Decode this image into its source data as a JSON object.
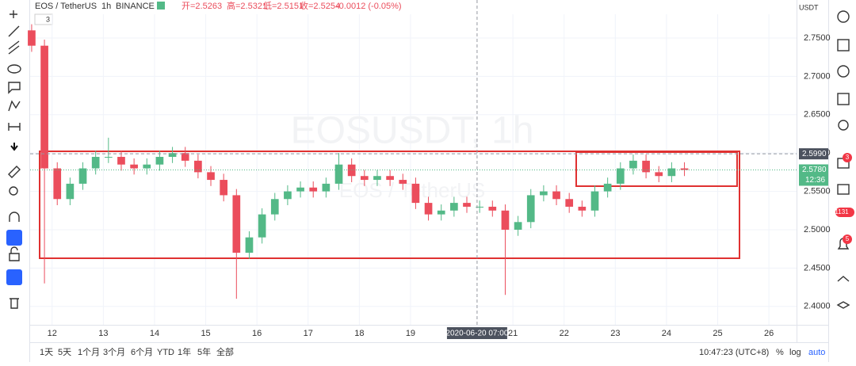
{
  "header": {
    "symbol": "EOS / TetherUS",
    "interval": "1h",
    "exchange": "BINANCE",
    "open": "开=2.5263",
    "high": "高=2.5321",
    "low": "低=2.5151",
    "close": "收=2.5254",
    "change": "-0.0012 (-0.05%)",
    "indicators": "3"
  },
  "watermark": {
    "main": "EOSUSDT, 1h",
    "sub": "EOS / TetherUS"
  },
  "chart_data": {
    "type": "candlestick",
    "currency": "USDT",
    "x": [
      11.6,
      11.85,
      12.1,
      12.35,
      12.6,
      12.85,
      13.1,
      13.35,
      13.6,
      13.85,
      14.1,
      14.35,
      14.6,
      14.85,
      15.1,
      15.35,
      15.6,
      15.85,
      16.1,
      16.35,
      16.6,
      16.85,
      17.1,
      17.35,
      17.6,
      17.85,
      18.1,
      18.35,
      18.6,
      18.85,
      19.1,
      19.35,
      19.6,
      19.85,
      20.1,
      20.35,
      20.6,
      20.85,
      21.1,
      21.35,
      21.6,
      21.85,
      22.1,
      22.35,
      22.6,
      22.85,
      23.1,
      23.35,
      23.6,
      23.85,
      24.1,
      24.35
    ],
    "open": [
      2.76,
      2.74,
      2.58,
      2.54,
      2.56,
      2.58,
      2.595,
      2.595,
      2.585,
      2.58,
      2.585,
      2.595,
      2.6,
      2.59,
      2.575,
      2.565,
      2.545,
      2.47,
      2.49,
      2.52,
      2.54,
      2.55,
      2.555,
      2.55,
      2.56,
      2.585,
      2.57,
      2.565,
      2.57,
      2.565,
      2.56,
      2.535,
      2.52,
      2.525,
      2.535,
      2.53,
      2.53,
      2.525,
      2.5,
      2.51,
      2.545,
      2.55,
      2.54,
      2.53,
      2.525,
      2.55,
      2.56,
      2.58,
      2.59,
      2.575,
      2.57,
      2.58
    ],
    "high": [
      2.768,
      2.748,
      2.588,
      2.568,
      2.588,
      2.603,
      2.62,
      2.603,
      2.593,
      2.593,
      2.603,
      2.608,
      2.608,
      2.598,
      2.583,
      2.573,
      2.553,
      2.498,
      2.528,
      2.548,
      2.558,
      2.563,
      2.563,
      2.568,
      2.6,
      2.593,
      2.578,
      2.578,
      2.578,
      2.573,
      2.568,
      2.543,
      2.533,
      2.543,
      2.543,
      2.538,
      2.538,
      2.533,
      2.518,
      2.553,
      2.558,
      2.558,
      2.548,
      2.538,
      2.558,
      2.568,
      2.588,
      2.598,
      2.598,
      2.583,
      2.588,
      2.588
    ],
    "low": [
      2.732,
      2.43,
      2.532,
      2.532,
      2.552,
      2.572,
      2.587,
      2.577,
      2.572,
      2.572,
      2.577,
      2.587,
      2.582,
      2.567,
      2.557,
      2.537,
      2.41,
      2.462,
      2.482,
      2.512,
      2.532,
      2.542,
      2.542,
      2.542,
      2.552,
      2.562,
      2.557,
      2.557,
      2.557,
      2.552,
      2.527,
      2.512,
      2.512,
      2.517,
      2.522,
      2.522,
      2.517,
      2.415,
      2.492,
      2.502,
      2.537,
      2.532,
      2.522,
      2.517,
      2.517,
      2.542,
      2.552,
      2.572,
      2.567,
      2.562,
      2.562,
      2.57
    ],
    "close": [
      2.74,
      2.58,
      2.54,
      2.56,
      2.58,
      2.595,
      2.595,
      2.585,
      2.58,
      2.585,
      2.595,
      2.6,
      2.59,
      2.575,
      2.565,
      2.545,
      2.47,
      2.49,
      2.52,
      2.54,
      2.55,
      2.555,
      2.55,
      2.56,
      2.585,
      2.57,
      2.565,
      2.57,
      2.565,
      2.56,
      2.535,
      2.52,
      2.525,
      2.535,
      2.53,
      2.53,
      2.525,
      2.5,
      2.51,
      2.545,
      2.55,
      2.54,
      2.53,
      2.525,
      2.55,
      2.56,
      2.58,
      2.59,
      2.575,
      2.57,
      2.58,
      2.578
    ],
    "up_color": "#53b987",
    "down_color": "#eb4d5c",
    "xlim": [
      11.57,
      26.54
    ],
    "xticks": [
      12,
      13,
      14,
      15,
      16,
      17,
      18,
      19,
      21,
      22,
      23,
      24,
      25,
      26
    ],
    "ylim": [
      2.376,
      2.781
    ],
    "yticks": [
      {
        "value": 2.4,
        "label": "2.4000"
      },
      {
        "value": 2.45,
        "label": "2.4500"
      },
      {
        "value": 2.5,
        "label": "2.5000"
      },
      {
        "value": 2.55,
        "label": "2.5500"
      },
      {
        "value": 2.6,
        "label": "2.6000"
      },
      {
        "value": 2.65,
        "label": "2.6500"
      },
      {
        "value": 2.7,
        "label": "2.7000"
      },
      {
        "value": 2.75,
        "label": "2.7500"
      }
    ],
    "crosshair": {
      "x": 20.3,
      "x_label": "2020-06-20  07:00",
      "y": 2.599,
      "y_label": "2.5990"
    },
    "last_price": {
      "value": 2.578,
      "label": "2.5780",
      "countdown": "12:36"
    }
  },
  "footer": {
    "ranges": [
      "1天",
      "5天",
      "1个月",
      "3个月",
      "6个月",
      "YTD",
      "1年",
      "5年",
      "全部"
    ],
    "time": "10:47:23 (UTC+8)",
    "percent": "%",
    "log": "log",
    "auto": "auto"
  },
  "sidebar": {
    "badges": [
      "3",
      "1131",
      "5"
    ]
  }
}
